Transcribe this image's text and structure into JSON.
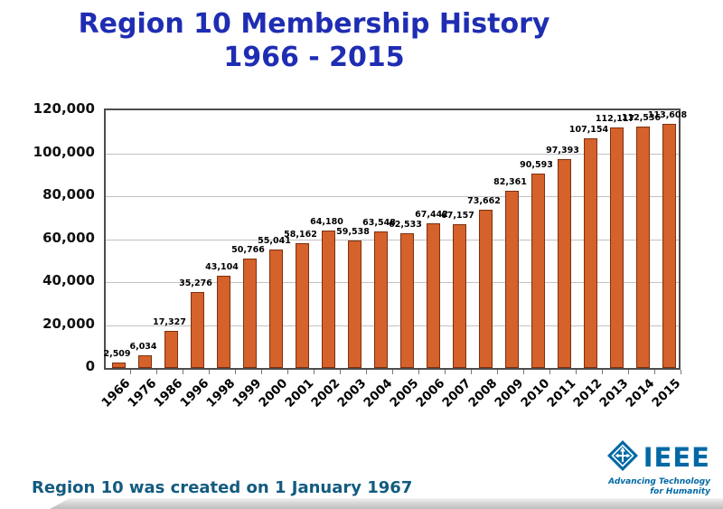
{
  "title": {
    "line1": "Region 10 Membership History",
    "line2": "1966 - 2015"
  },
  "footer": {
    "note": "Region 10 was created on 1 January 1967"
  },
  "logo": {
    "wordmark": "IEEE",
    "tagline_line1": "Advancing Technology",
    "tagline_line2": "for Humanity",
    "icon": "ieee-diamond-kite-icon"
  },
  "colors": {
    "title_text": "#1F2DB3",
    "bar_fill": "#D4622A",
    "bar_border": "#7E3010",
    "gridline": "#C2C2C2",
    "plot_border": "#4D4D4D",
    "footer_text": "#135B80",
    "ieee_blue": "#0068A5",
    "bottom_ribbon": "#BDBDBD"
  },
  "chart_data": {
    "type": "bar",
    "title": "Region 10 Membership History 1966 - 2015",
    "xlabel": "",
    "ylabel": "",
    "ylim": [
      0,
      120000
    ],
    "ytick_step": 20000,
    "ytick_labels": [
      "0",
      "20,000",
      "40,000",
      "60,000",
      "80,000",
      "100,000",
      "120,000"
    ],
    "grid": true,
    "legend_position": "none",
    "categories": [
      "1966",
      "1976",
      "1986",
      "1996",
      "1998",
      "1999",
      "2000",
      "2001",
      "2002",
      "2003",
      "2004",
      "2005",
      "2006",
      "2007",
      "2008",
      "2009",
      "2010",
      "2011",
      "2012",
      "2013",
      "2014",
      "2015"
    ],
    "values": [
      2509,
      6034,
      17327,
      35276,
      43104,
      50766,
      55041,
      58162,
      64180,
      59538,
      63548,
      62533,
      67442,
      67157,
      73662,
      82361,
      90593,
      97393,
      107154,
      112117,
      112536,
      113608
    ],
    "value_labels": [
      "2,509",
      "6,034",
      "17,327",
      "35,276",
      "43,104",
      "50,766",
      "55,041",
      "58,162",
      "64,180",
      "59,538",
      "63,548",
      "62,533",
      "67,442",
      "67,157",
      "73,662",
      "82,361",
      "90,593",
      "97,393",
      "107,154",
      "112,117",
      "112,536",
      "113,608"
    ]
  }
}
